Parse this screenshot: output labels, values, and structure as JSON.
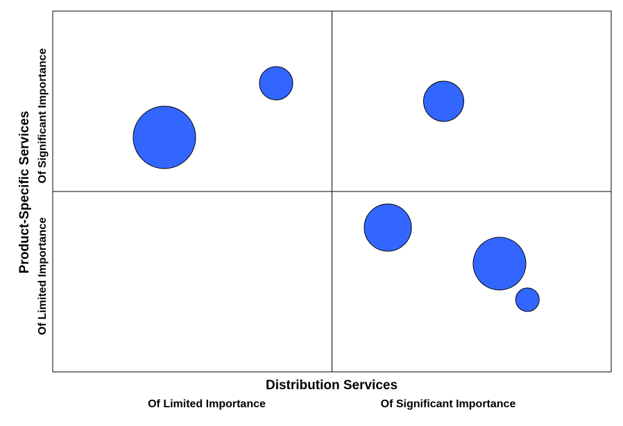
{
  "chart_data": {
    "type": "bubble",
    "xlabel": "Distribution Services",
    "ylabel": "Product-Specific Services",
    "x_category_labels": [
      "Of Limited Importance",
      "Of Significant Importance"
    ],
    "y_category_labels": [
      "Of Limited Importance",
      "Of Significant Importance"
    ],
    "xlim": [
      0,
      10
    ],
    "ylim": [
      0,
      10
    ],
    "quadrant_dividers": {
      "x": 5,
      "y": 5
    },
    "grid": false,
    "legend": false,
    "bubble_color": "#3366ff",
    "bubble_stroke": "#000000",
    "bubbles": [
      {
        "x": 2.0,
        "y": 6.5,
        "size": 45
      },
      {
        "x": 4.0,
        "y": 8.0,
        "size": 24
      },
      {
        "x": 7.0,
        "y": 7.5,
        "size": 29
      },
      {
        "x": 6.0,
        "y": 4.0,
        "size": 34
      },
      {
        "x": 8.0,
        "y": 3.0,
        "size": 38
      },
      {
        "x": 8.5,
        "y": 2.0,
        "size": 17
      }
    ]
  }
}
